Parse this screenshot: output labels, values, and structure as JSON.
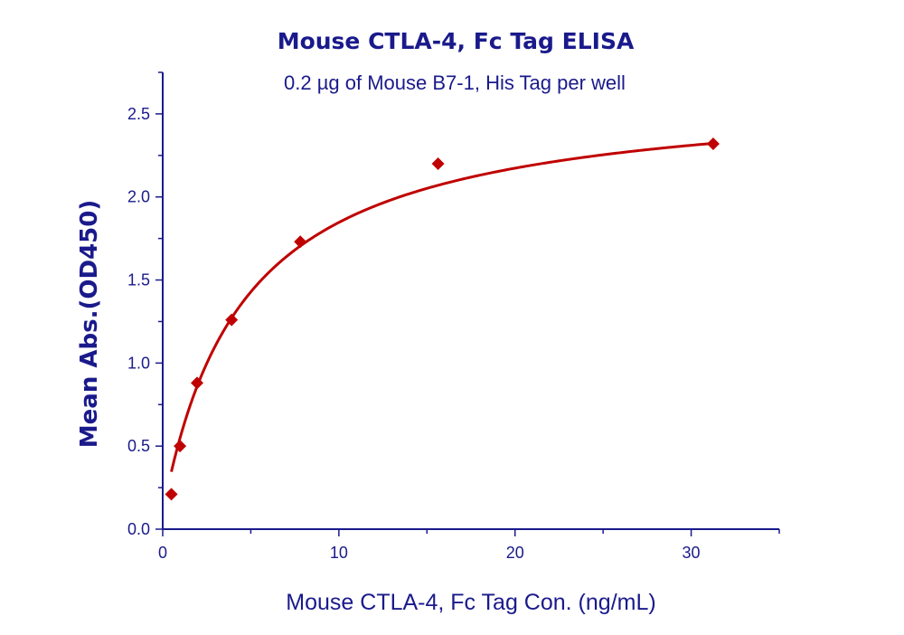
{
  "chart_data": {
    "type": "scatter",
    "title": "Mouse CTLA-4, Fc Tag ELISA",
    "annotation": "0.2 µg of Mouse B7-1, His Tag per well",
    "xlabel": "Mouse CTLA-4, Fc Tag Con. (ng/mL)",
    "ylabel": "Mean Abs.(OD450)",
    "xlim": [
      0,
      35
    ],
    "ylim": [
      0,
      2.75
    ],
    "xticks": [
      0,
      10,
      20,
      30
    ],
    "xtick_labels": [
      "0",
      "10",
      "20",
      "30"
    ],
    "yticks": [
      0.0,
      0.5,
      1.0,
      1.5,
      2.0,
      2.5
    ],
    "ytick_labels": [
      "0.0",
      "0.5",
      "1.0",
      "1.5",
      "2.0",
      "2.5"
    ],
    "grid": false,
    "series": [
      {
        "name": "Mouse CTLA-4, Fc Tag",
        "marker": "diamond",
        "color": "#c00000",
        "x": [
          0.49,
          0.98,
          1.95,
          3.91,
          7.81,
          15.63,
          31.25
        ],
        "y": [
          0.21,
          0.5,
          0.88,
          1.26,
          1.73,
          2.2,
          2.32
        ]
      }
    ],
    "fit": {
      "type": "hyperbolic",
      "color": "#c00000",
      "params": {
        "y0": 0.1,
        "bmax": 2.55,
        "kd": 4.6
      }
    }
  }
}
